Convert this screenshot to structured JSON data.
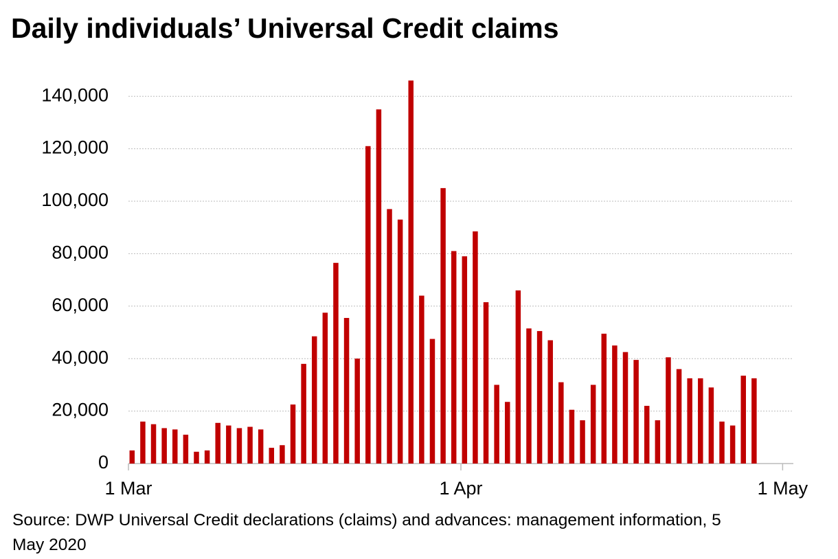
{
  "chart_data": {
    "type": "bar",
    "title": "Daily individuals’ Universal Credit claims",
    "source": "Source: DWP Universal Credit declarations (claims) and advances: management information, 5 May 2020",
    "x": [
      1,
      2,
      3,
      4,
      5,
      6,
      7,
      8,
      9,
      10,
      11,
      12,
      13,
      14,
      15,
      16,
      17,
      18,
      19,
      20,
      21,
      22,
      23,
      24,
      25,
      26,
      27,
      28,
      29,
      30,
      31,
      32,
      33,
      34,
      35,
      36,
      37,
      38,
      39,
      40,
      41,
      42,
      43,
      44,
      45,
      46,
      47,
      48,
      49,
      50,
      51,
      52,
      53,
      54,
      55,
      56,
      57,
      58,
      59
    ],
    "values": [
      5000,
      16000,
      15000,
      13500,
      13000,
      11000,
      4500,
      5000,
      15500,
      14500,
      13500,
      14000,
      13000,
      6000,
      7000,
      22500,
      38000,
      48500,
      57500,
      76500,
      55500,
      40000,
      121000,
      135000,
      97000,
      93000,
      146000,
      64000,
      47500,
      105000,
      81000,
      79000,
      88500,
      61500,
      30000,
      23500,
      66000,
      51500,
      50500,
      47000,
      31000,
      20500,
      16500,
      30000,
      49500,
      45000,
      42500,
      39500,
      22000,
      16500,
      40500,
      36000,
      32500,
      32500,
      29000,
      16000,
      14500,
      33500,
      32500
    ],
    "color": "#c00000",
    "xlim": [
      1,
      63
    ],
    "xticks": [
      {
        "value": 1,
        "label": "1 Mar"
      },
      {
        "value": 32,
        "label": "1 Apr"
      },
      {
        "value": 62,
        "label": "1 May"
      }
    ],
    "ylim": [
      0,
      150000
    ],
    "yticks": [
      0,
      {
        "value": 20000,
        "label": "20,000"
      },
      {
        "value": 40000,
        "label": "40,000"
      },
      {
        "value": 60000,
        "label": "60,000"
      },
      {
        "value": 80000,
        "label": "80,000"
      },
      {
        "value": 100000,
        "label": "100,000"
      },
      {
        "value": 120000,
        "label": "120,000"
      },
      {
        "value": 140000,
        "label": "140,000"
      }
    ],
    "grid": true
  }
}
